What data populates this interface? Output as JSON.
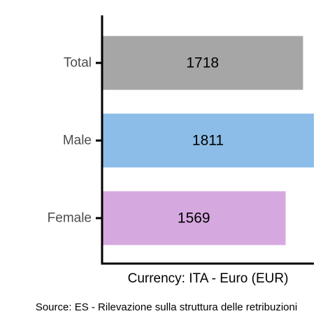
{
  "chart_data": {
    "type": "bar",
    "orientation": "horizontal",
    "categories": [
      "Total",
      "Male",
      "Female"
    ],
    "values": [
      1718,
      1811,
      1569
    ],
    "colors": [
      "#a6a6a6",
      "#8bbde8",
      "#d6a8e0"
    ],
    "xlabel": "Currency: ITA - Euro (EUR)",
    "caption": "Source:  ES - Rilevazione sulla struttura delle retribuzioni",
    "xlim": [
      0,
      1811
    ],
    "grid": false,
    "legend": "none"
  }
}
